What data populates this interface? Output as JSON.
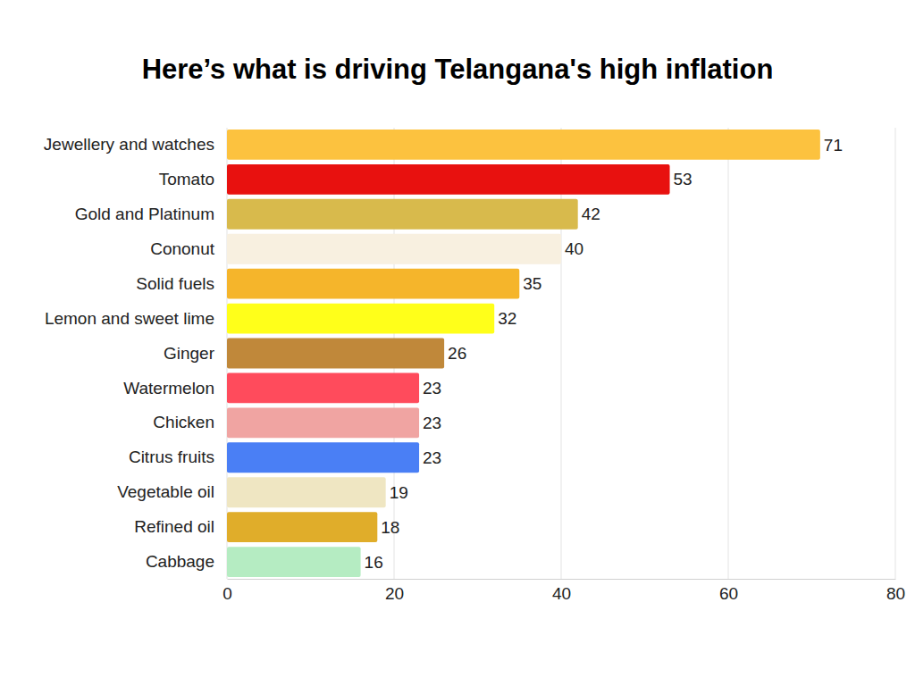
{
  "chart_data": {
    "type": "bar",
    "title": "Here’s what is driving Telangana's high inflation",
    "orientation": "horizontal",
    "categories": [
      "Jewellery and watches",
      "Tomato",
      "Gold and Platinum",
      "Cononut",
      "Solid fuels",
      "Lemon and sweet lime",
      "Ginger",
      "Watermelon",
      "Chicken",
      "Citrus fruits",
      "Vegetable oil",
      "Refined oil",
      "Cabbage"
    ],
    "values": [
      71,
      53,
      42,
      40,
      35,
      32,
      26,
      23,
      23,
      23,
      19,
      18,
      16
    ],
    "colors": [
      "#fcc23f",
      "#e8110f",
      "#d8ba4c",
      "#f8f0e0",
      "#f5b52b",
      "#ffff1a",
      "#c0883a",
      "#ff4b5c",
      "#f0a4a2",
      "#4a7ff5",
      "#efe6c2",
      "#e0ad2a",
      "#b5ecc2"
    ],
    "xlim": [
      0,
      80
    ],
    "xticks": [
      0,
      20,
      40,
      60,
      80
    ],
    "grid": true,
    "data_labels": true
  }
}
